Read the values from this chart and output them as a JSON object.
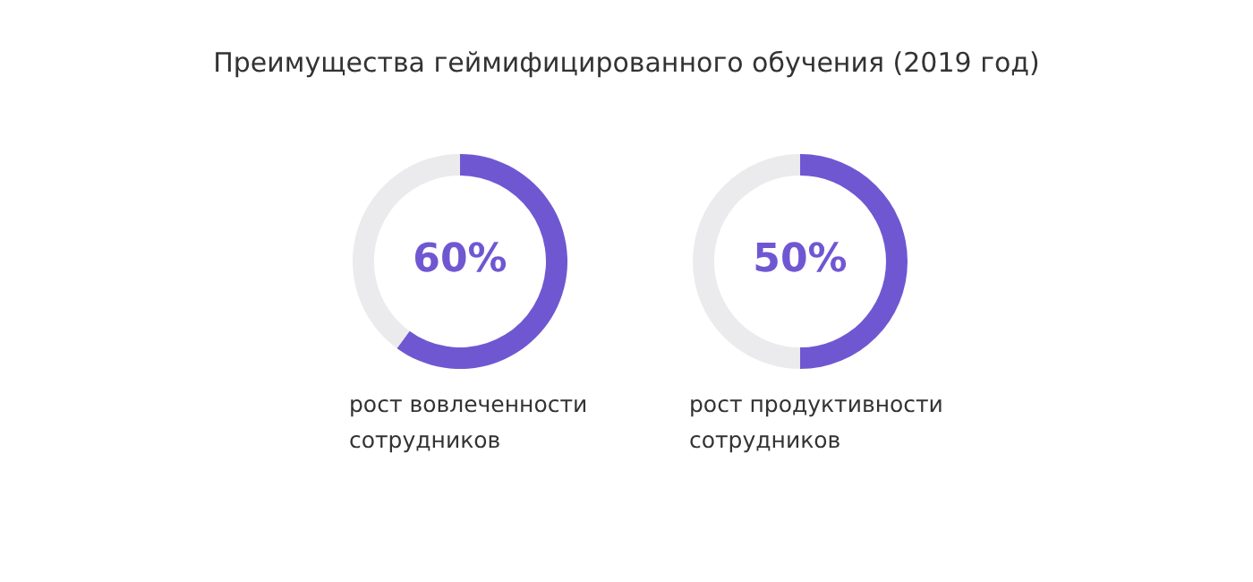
{
  "chart_data": [
    {
      "type": "donut",
      "title": "Преимущества геймифицированного обучения (2019 год)",
      "categories": [
        "рост вовлеченности сотрудников",
        null
      ],
      "values": [
        60,
        40
      ],
      "colors": [
        "#7057d2",
        "#ebebed"
      ],
      "value_labels": [
        "60%",
        null
      ],
      "legend": false
    },
    {
      "type": "donut",
      "categories": [
        "рост продуктивности сотрудников",
        null
      ],
      "values": [
        50,
        50
      ],
      "colors": [
        "#7057d2",
        "#ebebed"
      ],
      "value_labels": [
        "50%",
        null
      ],
      "legend": false
    }
  ]
}
